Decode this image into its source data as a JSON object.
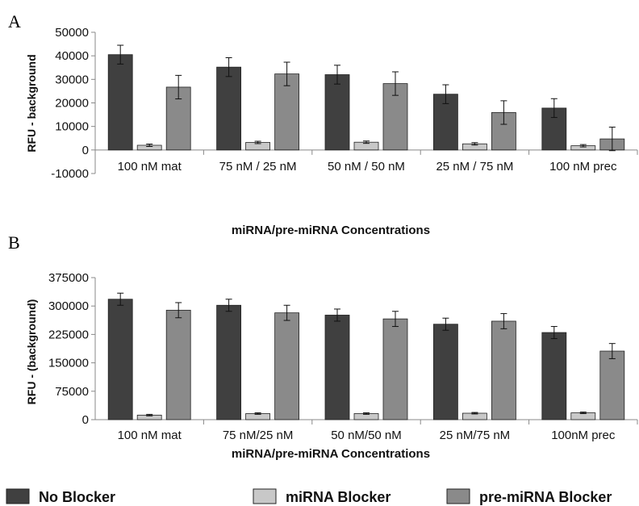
{
  "legend": [
    {
      "label": "No Blocker",
      "color": "#404040"
    },
    {
      "label": "miRNA Blocker",
      "color": "#c8c8c8"
    },
    {
      "label": "pre-miRNA Blocker",
      "color": "#8a8a8a"
    }
  ],
  "chart_data": [
    {
      "panel": "A",
      "type": "bar",
      "categories": [
        "100 nM mat",
        "75 nM / 25 nM",
        "50 nM / 50 nM",
        "25 nM / 75 nM",
        "100 nM prec"
      ],
      "series": [
        {
          "name": "No Blocker",
          "values": [
            40500,
            35200,
            32000,
            23700,
            17800
          ],
          "errors": [
            4000,
            4000,
            4000,
            4000,
            4000
          ]
        },
        {
          "name": "miRNA Blocker",
          "values": [
            2000,
            3200,
            3300,
            2600,
            1800
          ],
          "errors": [
            500,
            500,
            500,
            500,
            500
          ]
        },
        {
          "name": "pre-miRNA Blocker",
          "values": [
            26700,
            32300,
            28200,
            15900,
            4700
          ],
          "errors": [
            5000,
            5000,
            5000,
            5000,
            5000
          ]
        }
      ],
      "yticks": [
        "-10000",
        "0",
        "10000",
        "20000",
        "30000",
        "40000",
        "50000"
      ],
      "ylim": [
        -10000,
        50000
      ],
      "ylabel": "RFU - background",
      "xlabel": "miRNA/pre-miRNA Concentrations",
      "grid": false
    },
    {
      "panel": "B",
      "type": "bar",
      "categories": [
        "100 nM mat",
        "75 nM/25 nM",
        "50 nM/50 nM",
        "25 nM/75 nM",
        "100nM prec"
      ],
      "series": [
        {
          "name": "No Blocker",
          "values": [
            318000,
            302000,
            276000,
            252000,
            230000
          ],
          "errors": [
            16000,
            16000,
            16000,
            16000,
            16000
          ]
        },
        {
          "name": "miRNA Blocker",
          "values": [
            12000,
            16000,
            16000,
            17000,
            18000
          ],
          "errors": [
            2000,
            2000,
            2000,
            2000,
            2000
          ]
        },
        {
          "name": "pre-miRNA Blocker",
          "values": [
            289000,
            282000,
            266000,
            260000,
            181000
          ],
          "errors": [
            20000,
            20000,
            20000,
            20000,
            20000
          ]
        }
      ],
      "yticks": [
        "0",
        "75000",
        "150000",
        "225000",
        "300000",
        "375000"
      ],
      "ylim": [
        0,
        375000
      ],
      "ylabel": "RFU - (background)",
      "xlabel": "miRNA/pre-miRNA Concentrations",
      "grid": false
    }
  ]
}
